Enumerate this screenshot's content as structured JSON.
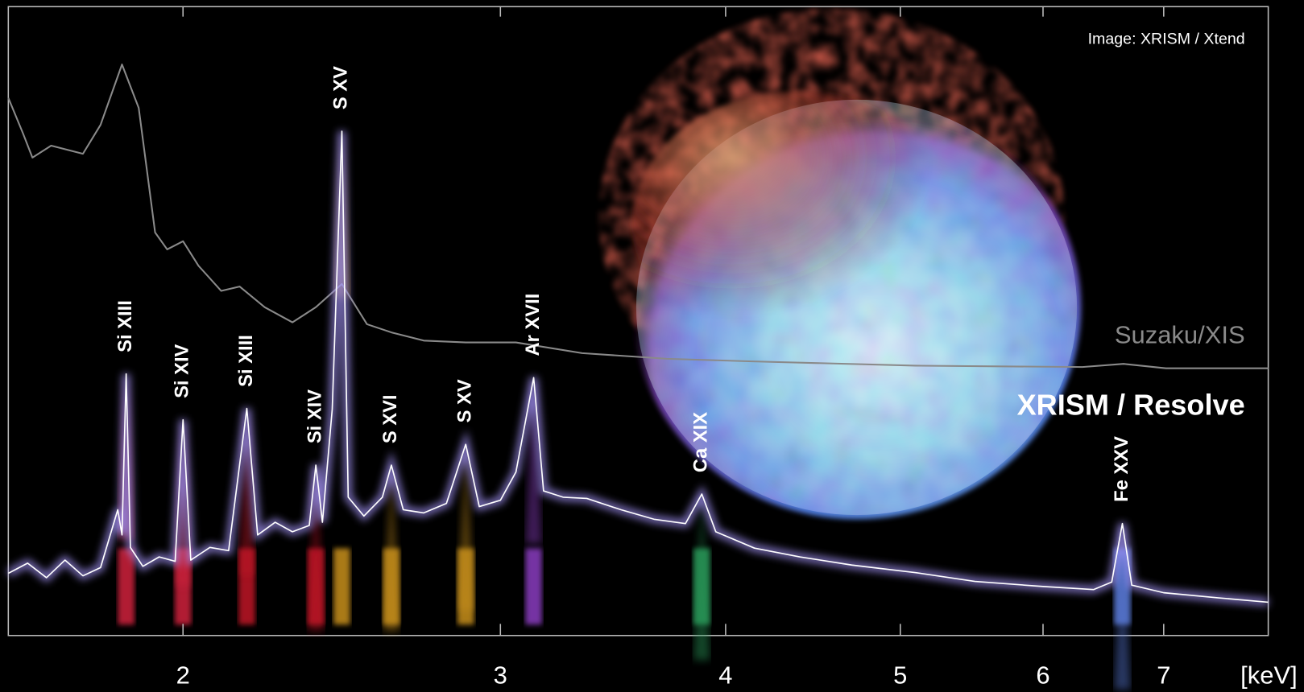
{
  "chart_data": {
    "type": "line",
    "x_scale": "log",
    "xlim": [
      1.6,
      8.0
    ],
    "ylim": [
      0,
      100
    ],
    "xticks": [
      2,
      3,
      4,
      5,
      6,
      7
    ],
    "x_label": "[keV]",
    "credit": "Image: XRISM / Xtend",
    "series": [
      {
        "name": "Suzaku/XIS",
        "color": "#8a8a8a",
        "x": [
          1.6,
          1.63,
          1.65,
          1.69,
          1.76,
          1.8,
          1.85,
          1.89,
          1.93,
          1.96,
          2.0,
          2.04,
          2.1,
          2.15,
          2.22,
          2.3,
          2.37,
          2.45,
          2.53,
          2.61,
          2.72,
          2.87,
          3.06,
          3.33,
          3.71,
          4.12,
          5.1,
          6.31,
          6.65,
          7.02,
          8.0
        ],
        "values": [
          85.5,
          79.9,
          76.0,
          77.9,
          76.6,
          81.2,
          90.8,
          83.9,
          64.1,
          61.4,
          62.7,
          58.8,
          54.8,
          55.5,
          52.2,
          49.8,
          52.2,
          55.9,
          49.5,
          48.2,
          46.9,
          46.6,
          46.6,
          44.9,
          44.0,
          43.6,
          42.9,
          42.7,
          43.2,
          42.5,
          42.5
        ]
      },
      {
        "name": "XRISM / Resolve",
        "color": "#ffffff",
        "x": [
          1.6,
          1.64,
          1.68,
          1.72,
          1.76,
          1.8,
          1.84,
          1.85,
          1.86,
          1.87,
          1.9,
          1.94,
          1.98,
          2.0,
          2.02,
          2.07,
          2.12,
          2.17,
          2.2,
          2.25,
          2.3,
          2.35,
          2.37,
          2.39,
          2.42,
          2.45,
          2.47,
          2.52,
          2.58,
          2.61,
          2.65,
          2.72,
          2.8,
          2.87,
          2.92,
          3.0,
          3.06,
          3.13,
          3.17,
          3.25,
          3.35,
          3.5,
          3.65,
          3.8,
          3.88,
          3.95,
          4.15,
          4.4,
          4.7,
          5.1,
          5.5,
          6.0,
          6.4,
          6.55,
          6.64,
          6.72,
          7.0,
          7.5,
          8.0
        ],
        "values": [
          9.9,
          11.5,
          9.2,
          12.0,
          9.5,
          10.8,
          20.0,
          16.0,
          41.6,
          14.0,
          11.0,
          12.5,
          11.8,
          34.3,
          12.0,
          14.0,
          13.5,
          36.1,
          16.0,
          18.0,
          16.5,
          17.5,
          27.1,
          18.0,
          36.0,
          80.2,
          22.0,
          19.0,
          22.0,
          27.1,
          20.0,
          19.5,
          21.0,
          30.4,
          20.5,
          21.5,
          26.0,
          41.0,
          23.0,
          22.0,
          21.8,
          20.0,
          18.5,
          17.8,
          22.5,
          16.5,
          13.9,
          12.5,
          11.2,
          10.0,
          8.6,
          7.8,
          7.3,
          8.5,
          17.8,
          8.0,
          6.8,
          6.0,
          5.3
        ]
      }
    ],
    "lines": [
      {
        "label": "Si XIII",
        "energy": 1.86,
        "color": "#d0203c"
      },
      {
        "label": "Si XIV",
        "energy": 2.0,
        "color": "#d0203c"
      },
      {
        "label": "Si XIII",
        "energy": 2.17,
        "color": "#c01828"
      },
      {
        "label": "Si XIV",
        "energy": 2.37,
        "color": "#c01828"
      },
      {
        "label": "S XV",
        "energy": 2.45,
        "color": "#c8901c"
      },
      {
        "label": "S XVI",
        "energy": 2.61,
        "color": "#c8901c"
      },
      {
        "label": "S XV",
        "energy": 2.87,
        "color": "#c8901c"
      },
      {
        "label": "Ar XVII",
        "energy": 3.13,
        "color": "#8a3cc0"
      },
      {
        "label": "Ca XIX",
        "energy": 3.88,
        "color": "#2a9a5a"
      },
      {
        "label": "Fe XXV",
        "energy": 6.64,
        "color": "#5a7ad8"
      }
    ]
  }
}
